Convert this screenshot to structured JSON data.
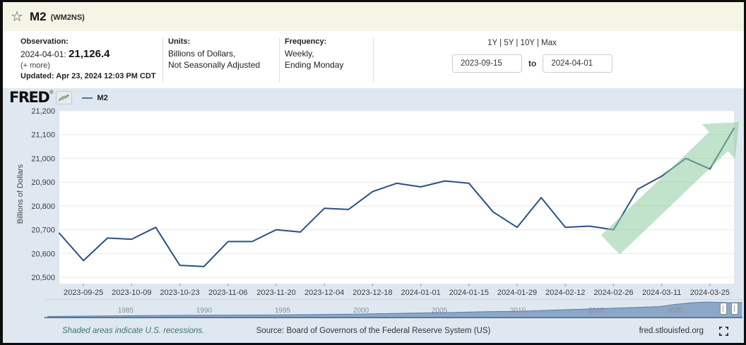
{
  "header": {
    "title": "M2",
    "series_id": "(WM2NS)"
  },
  "info": {
    "observation_label": "Observation:",
    "observation_date": "2024-04-01:",
    "observation_value": "21,126.4",
    "more_link": "(+ more)",
    "updated": "Updated: Apr 23, 2024 12:03 PM CDT",
    "units_label": "Units:",
    "units_line1": "Billions of Dollars,",
    "units_line2": "Not Seasonally Adjusted",
    "frequency_label": "Frequency:",
    "frequency_line1": "Weekly,",
    "frequency_line2": "Ending Monday"
  },
  "range_controls": {
    "presets": "1Y | 5Y | 10Y | Max",
    "start_date": "2023-09-15",
    "to_label": "to",
    "end_date": "2024-04-01"
  },
  "chart_header": {
    "logo": "FRED",
    "logo_reg": "®",
    "chart_icon": "mini-line-chart",
    "legend_label": "M2"
  },
  "chart_data": {
    "type": "line",
    "title": "M2 (WM2NS)",
    "xlabel": "",
    "ylabel": "Billions of Dollars",
    "ylim": [
      20500,
      21200
    ],
    "grid": "horizontal",
    "legend_position": "top-left",
    "y_tick_labels": [
      "21,200",
      "21,100",
      "21,000",
      "20,900",
      "20,800",
      "20,700",
      "20,600",
      "20,500"
    ],
    "x": [
      "2023-09-18",
      "2023-09-25",
      "2023-10-02",
      "2023-10-09",
      "2023-10-16",
      "2023-10-23",
      "2023-10-30",
      "2023-11-06",
      "2023-11-13",
      "2023-11-20",
      "2023-11-27",
      "2023-12-04",
      "2023-12-11",
      "2023-12-18",
      "2023-12-25",
      "2024-01-01",
      "2024-01-08",
      "2024-01-15",
      "2024-01-22",
      "2024-01-29",
      "2024-02-05",
      "2024-02-12",
      "2024-02-19",
      "2024-02-26",
      "2024-03-04",
      "2024-03-11",
      "2024-03-18",
      "2024-03-25",
      "2024-04-01"
    ],
    "x_tick_indices": [
      1,
      3,
      5,
      7,
      9,
      11,
      13,
      15,
      17,
      19,
      21,
      23,
      25,
      27
    ],
    "series": [
      {
        "name": "M2",
        "values": [
          20685,
          20570,
          20665,
          20660,
          20710,
          20550,
          20545,
          20650,
          20650,
          20700,
          20690,
          20790,
          20785,
          20860,
          20895,
          20880,
          20905,
          20895,
          20775,
          20710,
          20835,
          20710,
          20715,
          20700,
          20870,
          20925,
          21000,
          20955,
          21126.4
        ]
      }
    ],
    "annotation": "large translucent green arrow pointing up-right over the rally from 2024-02-26 to 2024-04-01"
  },
  "slider": {
    "years": [
      "1985",
      "1990",
      "1995",
      "2000",
      "2005",
      "2010",
      "2015",
      "2020"
    ],
    "area_profile": [
      [
        1980,
        1500
      ],
      [
        1982,
        1850
      ],
      [
        1985,
        2450
      ],
      [
        1988,
        2990
      ],
      [
        1990,
        3270
      ],
      [
        1993,
        3480
      ],
      [
        1995,
        3620
      ],
      [
        1998,
        4400
      ],
      [
        2000,
        4900
      ],
      [
        2003,
        6050
      ],
      [
        2005,
        6650
      ],
      [
        2008,
        8150
      ],
      [
        2010,
        8750
      ],
      [
        2013,
        10900
      ],
      [
        2015,
        12300
      ],
      [
        2017,
        13800
      ],
      [
        2019,
        15300
      ],
      [
        2020,
        18300
      ],
      [
        2021,
        20500
      ],
      [
        2022,
        21750
      ],
      [
        2022.8,
        21350
      ],
      [
        2023.5,
        20750
      ],
      [
        2024.3,
        21100
      ]
    ]
  },
  "footer": {
    "recessions_note": "Shaded areas indicate U.S. recessions.",
    "source": "Source: Board of Governors of the Federal Reserve System (US)",
    "site": "fred.stlouisfed.org"
  },
  "colors": {
    "line": "#2a5180",
    "arrow_green": "#8ecba0",
    "header_bg": "#f5f5e6",
    "chart_bg": "#dfe8f0",
    "grid": "#e8e8e8",
    "slider_fill": "#8ca7c7",
    "slider_stroke": "#5b7da7",
    "slider_baseline": "#47678d",
    "recession_note_color": "#3f7274"
  }
}
